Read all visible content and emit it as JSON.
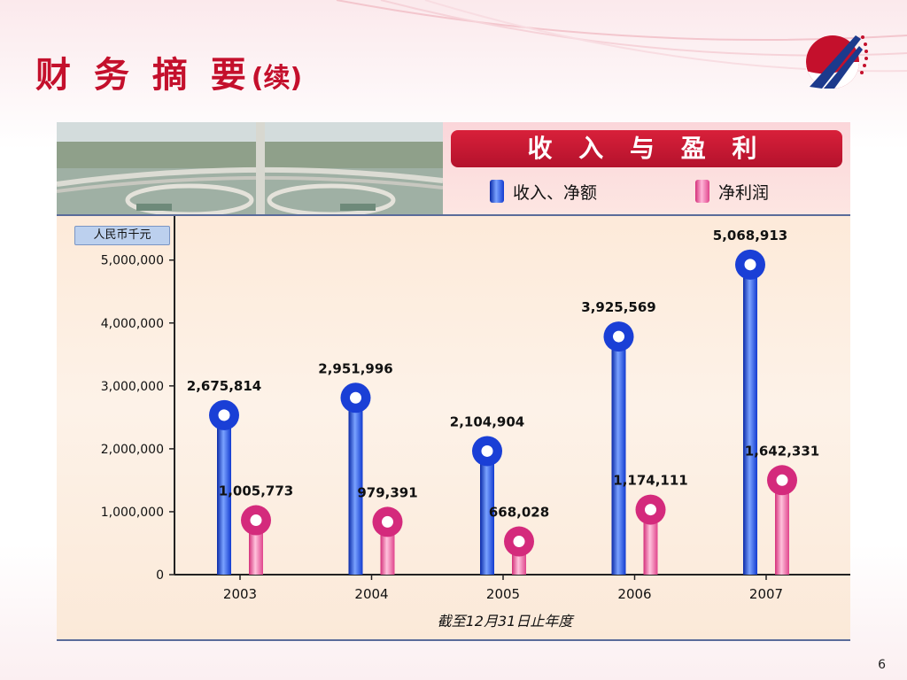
{
  "slide": {
    "title": "财 务 摘 要",
    "title_suffix": "(续)",
    "page_number": "6",
    "brand_color": "#c4102c"
  },
  "header": {
    "chart_title": "收 入 与 盈 利",
    "legend": [
      {
        "label": "收入、净额",
        "color": "#1a3fd6"
      },
      {
        "label": "净利润",
        "color": "#e0448c"
      }
    ]
  },
  "chart_data": {
    "type": "bar",
    "title": "收 入 与 盈 利",
    "unit": "人民币千元",
    "xlabel": "截至12月31日止年度",
    "ylabel": "",
    "categories": [
      "2003",
      "2004",
      "2005",
      "2006",
      "2007"
    ],
    "series": [
      {
        "name": "收入、净额",
        "values": [
          2675814,
          2951996,
          2104904,
          3925569,
          5068913
        ],
        "labels": [
          "2,675,814",
          "2,951,996",
          "2,104,904",
          "3,925,569",
          "5,068,913"
        ],
        "color": "#1a3fd6"
      },
      {
        "name": "净利润",
        "values": [
          1005773,
          979391,
          668028,
          1174111,
          1642331
        ],
        "labels": [
          "1,005,773",
          "979,391",
          "668,028",
          "1,174,111",
          "1,642,331"
        ],
        "color": "#e0448c"
      }
    ],
    "ylim": [
      0,
      5700000
    ],
    "yticks": [
      0,
      1000000,
      2000000,
      3000000,
      4000000,
      5000000
    ],
    "ytick_labels": [
      "0",
      "1,000,000",
      "2,000,000",
      "3,000,000",
      "4,000,000",
      "5,000,000"
    ],
    "grid": false,
    "legend_position": "top-right"
  }
}
